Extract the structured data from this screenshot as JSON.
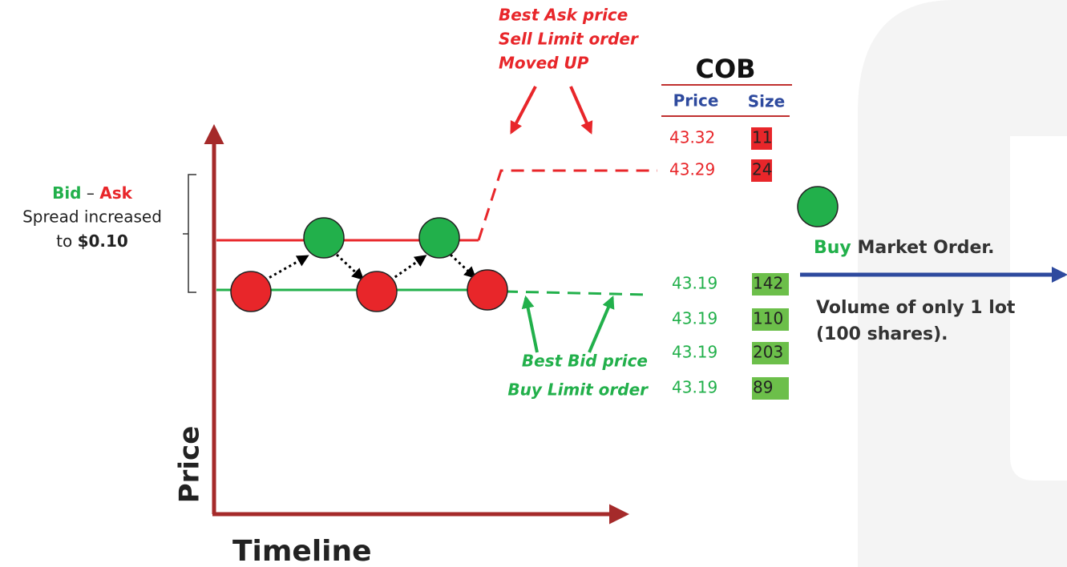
{
  "axis_labels": {
    "x": "Timeline",
    "y": "Price"
  },
  "spread": {
    "bid": "Bid",
    "dash": "–",
    "ask": "Ask",
    "line2": "Spread increased",
    "to": "to",
    "amount": "$0.10"
  },
  "ask_annotation": [
    "Best Ask price",
    "Sell Limit order",
    "Moved UP"
  ],
  "bid_annotation": [
    "Best Bid price",
    "Buy Limit order"
  ],
  "cob": {
    "title": "COB",
    "headers": [
      "Price",
      "Size"
    ],
    "asks": [
      [
        "43.32",
        "11"
      ],
      [
        "43.29",
        "24"
      ]
    ],
    "bids": [
      [
        "43.19",
        "142"
      ],
      [
        "43.19",
        "110"
      ],
      [
        "43.19",
        "203"
      ],
      [
        "43.19",
        "89"
      ]
    ]
  },
  "market_order": {
    "side": "Buy",
    "label": "Market Order.",
    "note": [
      "Volume of only 1 lot",
      "(100 shares)."
    ]
  }
}
